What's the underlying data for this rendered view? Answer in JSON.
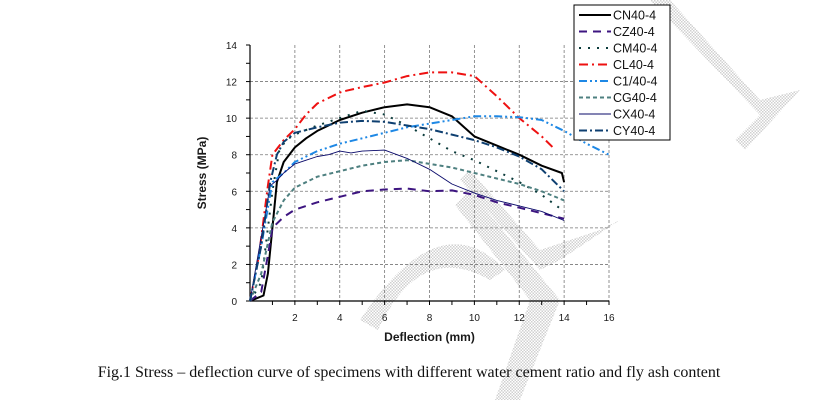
{
  "caption": "Fig.1 Stress – deflection curve of specimens with different water cement ratio and fly ash content",
  "chart_data": {
    "type": "line",
    "title": "",
    "xlabel": "Deflection (mm)",
    "ylabel": "Stress (MPa)",
    "xlim": [
      0,
      16
    ],
    "ylim": [
      0,
      14
    ],
    "xticks": [
      "2",
      "4",
      "6",
      "8",
      "10",
      "12",
      "14",
      "16"
    ],
    "yticks": [
      "0",
      "2",
      "4",
      "6",
      "8",
      "10",
      "12",
      "14"
    ],
    "grid": true,
    "legend_position": "top-right",
    "series": [
      {
        "name": "CN40-4",
        "color": "#000000",
        "style": "solid",
        "x": [
          0,
          0.6,
          0.8,
          1.0,
          1.2,
          1.5,
          2.0,
          2.5,
          3.0,
          4.0,
          5.0,
          6.0,
          7.0,
          8.0,
          9.0,
          10.0,
          11.0,
          12.0,
          13.0,
          13.9,
          14.0
        ],
        "y": [
          0,
          0.3,
          1.5,
          4.0,
          6.5,
          7.6,
          8.4,
          8.9,
          9.3,
          9.9,
          10.3,
          10.6,
          10.75,
          10.6,
          10.1,
          9.0,
          8.5,
          8.0,
          7.4,
          7.0,
          6.5
        ]
      },
      {
        "name": "CZ40-4",
        "color": "#3d1580",
        "style": "dash",
        "x": [
          0,
          0.5,
          0.8,
          1.0,
          1.5,
          2.0,
          3.0,
          4.0,
          5.0,
          6.0,
          7.0,
          8.0,
          9.0,
          10.0,
          11.0,
          12.0,
          13.0,
          14.0
        ],
        "y": [
          0,
          0.5,
          2.5,
          4.0,
          4.6,
          5.0,
          5.4,
          5.7,
          6.0,
          6.1,
          6.15,
          6.0,
          6.05,
          5.8,
          5.4,
          5.1,
          4.8,
          4.5
        ]
      },
      {
        "name": "CM40-4",
        "color": "#0b3b3b",
        "style": "dot",
        "x": [
          0,
          0.5,
          1.0,
          1.3,
          1.6,
          2.0,
          3.0,
          4.0,
          5.0,
          6.0,
          7.0,
          8.0,
          9.0,
          10.0,
          11.0,
          12.0,
          13.0,
          14.0
        ],
        "y": [
          0,
          1.0,
          6.0,
          8.2,
          8.8,
          9.1,
          9.6,
          10.0,
          10.4,
          10.2,
          9.6,
          8.9,
          8.2,
          7.7,
          7.1,
          6.5,
          5.8,
          4.9
        ]
      },
      {
        "name": "CL40-4",
        "color": "#ee1111",
        "style": "dashdot",
        "x": [
          0,
          0.4,
          0.8,
          1.0,
          1.5,
          2.0,
          2.5,
          3.0,
          4.0,
          4.3,
          5.0,
          6.0,
          7.0,
          8.0,
          9.0,
          10.0,
          11.0,
          12.0,
          13.0,
          13.5
        ],
        "y": [
          0,
          2.5,
          6.3,
          8.0,
          8.8,
          9.4,
          10.2,
          10.8,
          11.4,
          11.5,
          11.7,
          11.95,
          12.3,
          12.5,
          12.5,
          12.3,
          11.2,
          10.0,
          9.0,
          8.4
        ]
      },
      {
        "name": "C1/40-4",
        "color": "#1e88e5",
        "style": "dashdotdot",
        "x": [
          0,
          0.5,
          1.0,
          1.5,
          2.0,
          3.0,
          4.0,
          5.0,
          6.0,
          7.0,
          8.0,
          9.0,
          10.0,
          11.0,
          12.0,
          13.0,
          14.0,
          15.0,
          16.0
        ],
        "y": [
          0,
          3.0,
          6.5,
          7.0,
          7.6,
          8.2,
          8.6,
          8.9,
          9.2,
          9.5,
          9.7,
          9.9,
          10.1,
          10.1,
          10.05,
          9.9,
          9.3,
          8.6,
          8.0
        ]
      },
      {
        "name": "CG40-4",
        "color": "#4e8080",
        "style": "shortdash",
        "x": [
          0,
          0.5,
          1.0,
          1.5,
          2.0,
          3.0,
          4.0,
          5.0,
          6.0,
          7.0,
          8.0,
          9.0,
          10.0,
          11.0,
          12.0,
          13.0,
          14.0
        ],
        "y": [
          0,
          1.5,
          4.3,
          5.5,
          6.2,
          6.8,
          7.1,
          7.4,
          7.6,
          7.7,
          7.5,
          7.3,
          7.0,
          6.7,
          6.4,
          6.0,
          5.5
        ]
      },
      {
        "name": "CX40-4",
        "color": "#0a0a6a",
        "style": "thin",
        "x": [
          0,
          0.5,
          0.9,
          1.2,
          1.5,
          2.0,
          2.5,
          3.0,
          3.5,
          4.0,
          4.5,
          5.0,
          6.0,
          7.0,
          8.0,
          9.0,
          10.0,
          11.0,
          12.0,
          13.0,
          14.0
        ],
        "y": [
          0,
          3.5,
          6.3,
          6.6,
          7.0,
          7.5,
          7.7,
          7.9,
          8.0,
          8.2,
          8.1,
          8.2,
          8.25,
          7.8,
          7.2,
          6.4,
          5.9,
          5.5,
          5.2,
          4.9,
          4.4
        ]
      },
      {
        "name": "CY40-4",
        "color": "#0e3f70",
        "style": "dashdot2",
        "x": [
          0,
          0.5,
          0.9,
          1.2,
          1.5,
          2.0,
          3.0,
          4.0,
          5.0,
          6.0,
          7.0,
          8.0,
          9.0,
          10.0,
          11.0,
          12.0,
          13.0,
          14.0
        ],
        "y": [
          0,
          3.0,
          6.5,
          8.0,
          8.7,
          9.2,
          9.5,
          9.75,
          9.85,
          9.8,
          9.6,
          9.4,
          9.1,
          8.8,
          8.4,
          7.9,
          7.2,
          6.0
        ]
      }
    ]
  }
}
